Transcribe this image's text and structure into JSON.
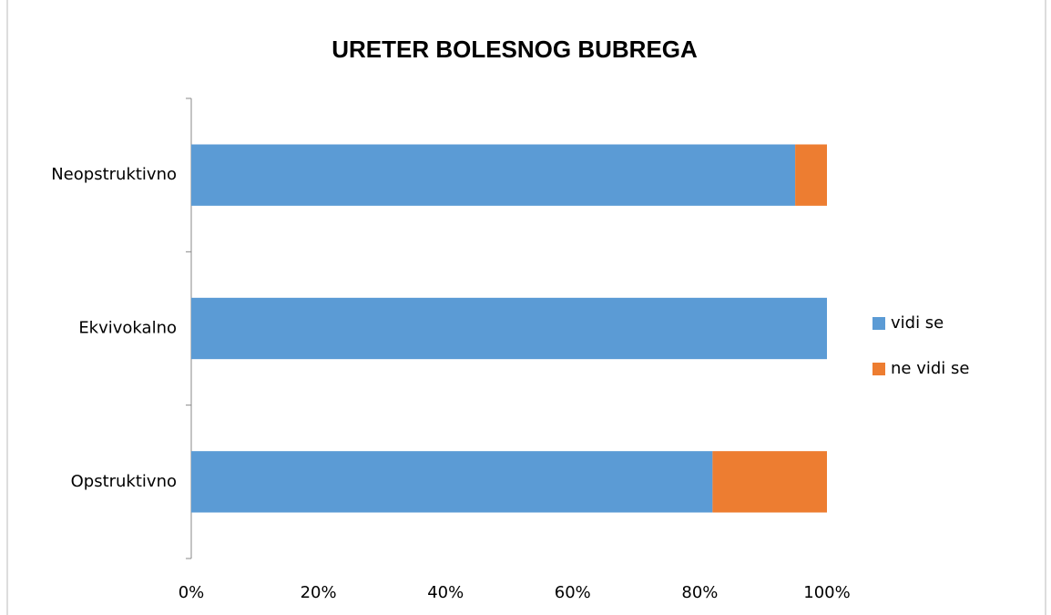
{
  "chart_data": {
    "type": "stacked-barh",
    "title": "URETER BOLESNOG BUBREGA",
    "categories": [
      "Opstruktivno",
      "Ekvivokalno",
      "Neopstruktivno"
    ],
    "series": [
      {
        "name": "vidi se",
        "color": "#5b9bd5",
        "values": [
          82,
          100,
          95
        ]
      },
      {
        "name": "ne vidi se",
        "color": "#ed7d31",
        "values": [
          18,
          0,
          5
        ]
      }
    ],
    "xlim": [
      0,
      100
    ],
    "xticks": [
      {
        "value": 0,
        "label": "0%"
      },
      {
        "value": 20,
        "label": "20%"
      },
      {
        "value": 40,
        "label": "40%"
      },
      {
        "value": 60,
        "label": "60%"
      },
      {
        "value": 80,
        "label": "80%"
      },
      {
        "value": 100,
        "label": "100%"
      }
    ],
    "grid": false,
    "legend": "right"
  }
}
